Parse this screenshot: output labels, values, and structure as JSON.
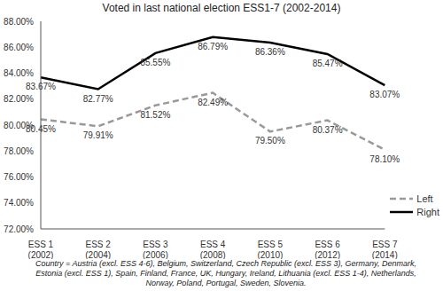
{
  "chart_data": {
    "type": "line",
    "title": "Voted in last national election ESS1-7 (2002-2014)",
    "categories": [
      "ESS 1 (2002)",
      "ESS 2 (2004)",
      "ESS 3 (2006)",
      "ESS 4 (2008)",
      "ESS 5 (2010)",
      "ESS 6 (2012)",
      "ESS 7 (2014)"
    ],
    "series": [
      {
        "name": "Left",
        "color": "#999999",
        "line_style": "dashed",
        "values": [
          80.45,
          79.91,
          81.52,
          82.49,
          79.5,
          80.37,
          78.1
        ],
        "value_labels": [
          "80.45%",
          "79.91%",
          "81.52%",
          "82.49%",
          "79.50%",
          "80.37%",
          "78.10%"
        ]
      },
      {
        "name": "Right",
        "color": "#000000",
        "line_style": "solid",
        "values": [
          83.67,
          82.77,
          85.55,
          86.79,
          86.36,
          85.47,
          83.07
        ],
        "value_labels": [
          "83.67%",
          "82.77%",
          "85.55%",
          "86.79%",
          "86.36%",
          "85.47%",
          "83.07%"
        ]
      }
    ],
    "ylim": [
      72,
      88
    ],
    "yticks": [
      {
        "value": 72,
        "label": "72.00%"
      },
      {
        "value": 74,
        "label": "74.00%"
      },
      {
        "value": 76,
        "label": "76.00%"
      },
      {
        "value": 78,
        "label": "78.00%"
      },
      {
        "value": 80,
        "label": "80.00%"
      },
      {
        "value": 82,
        "label": "82.00%"
      },
      {
        "value": 84,
        "label": "84.00%"
      },
      {
        "value": 86,
        "label": "86.00%"
      },
      {
        "value": 88,
        "label": "88.00%"
      }
    ],
    "grid": false,
    "legend": "lower right",
    "data_labels": true,
    "annotations": [
      "Country = Austria (excl. ESS 4-6), Belgium, Switzerland, Czech Republic (excl. ESS 3), Germany, Denmark, Estonia (excl. ESS 1), Spain, Finland, France, UK, Hungary, Ireland, Lithuania (excl. ESS 1-4), Netherlands, Norway, Poland, Portugal, Sweden, Slovenia."
    ]
  }
}
